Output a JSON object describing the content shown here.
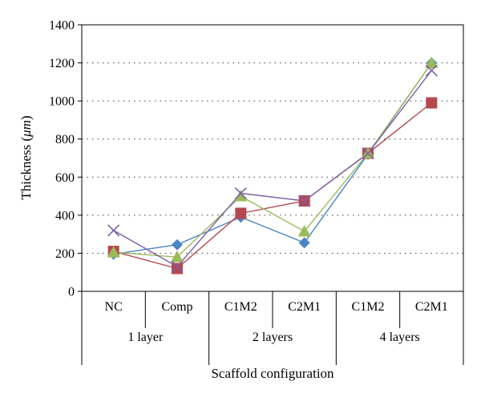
{
  "chart_data": {
    "type": "line",
    "ylabel_text": "Thickness (",
    "ylabel_unit": "μm",
    "ylabel_close": ")",
    "xlabel": "Scaffold configuration",
    "ylim": [
      0,
      1400
    ],
    "yticks": [
      0,
      200,
      400,
      600,
      800,
      1000,
      1200,
      1400
    ],
    "grid": true,
    "categories": [
      "NC",
      "Comp",
      "C1M2",
      "C2M1",
      "C1M2",
      "C2M1"
    ],
    "groups": [
      {
        "label": "1 layer",
        "span": [
          0,
          1
        ]
      },
      {
        "label": "2 layers",
        "span": [
          2,
          3
        ]
      },
      {
        "label": "4 layers",
        "span": [
          4,
          5
        ]
      }
    ],
    "series": [
      {
        "marker": "diamond",
        "color": "#4a86c5",
        "values": [
          195,
          245,
          390,
          255,
          720,
          1200
        ]
      },
      {
        "marker": "square",
        "color": "#b5484f",
        "values": [
          210,
          120,
          410,
          475,
          725,
          990
        ]
      },
      {
        "marker": "triangle",
        "color": "#9bbb59",
        "values": [
          205,
          180,
          500,
          315,
          725,
          1200
        ]
      },
      {
        "marker": "x",
        "color": "#7e5ea6",
        "values": [
          320,
          130,
          515,
          475,
          725,
          1160
        ]
      }
    ]
  }
}
